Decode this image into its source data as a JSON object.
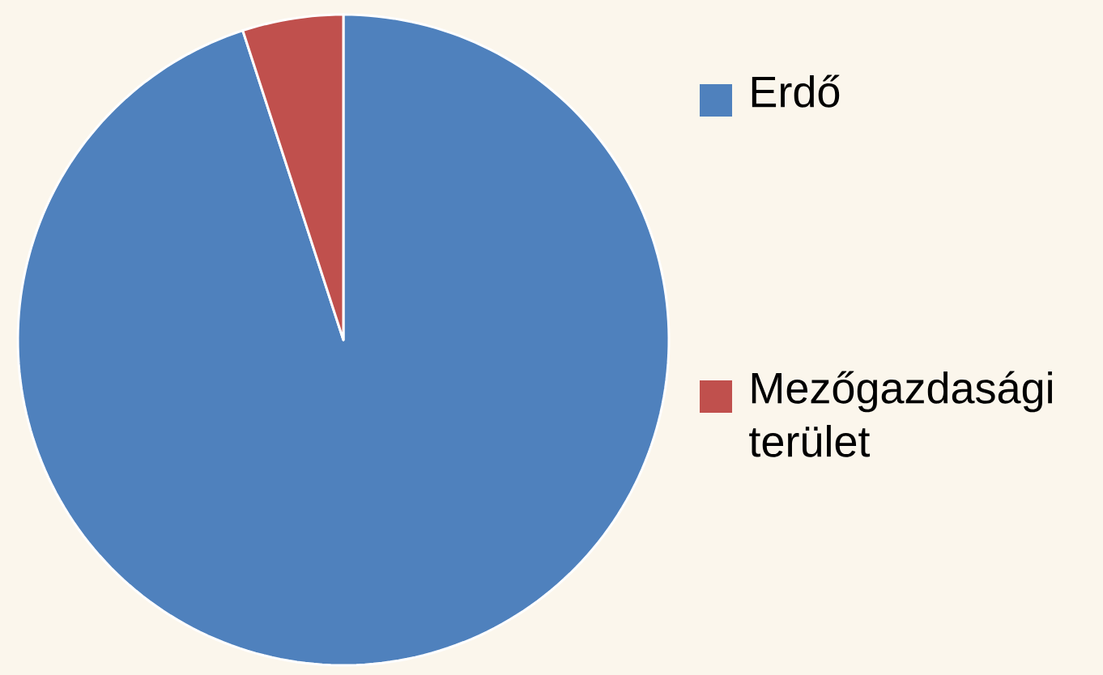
{
  "chart_data": {
    "type": "pie",
    "categories": [
      "Erdő",
      "Mezőgazdasági terület"
    ],
    "values": [
      95,
      5
    ],
    "colors": [
      "#4f81bd",
      "#c0504d"
    ],
    "legend": "right"
  }
}
